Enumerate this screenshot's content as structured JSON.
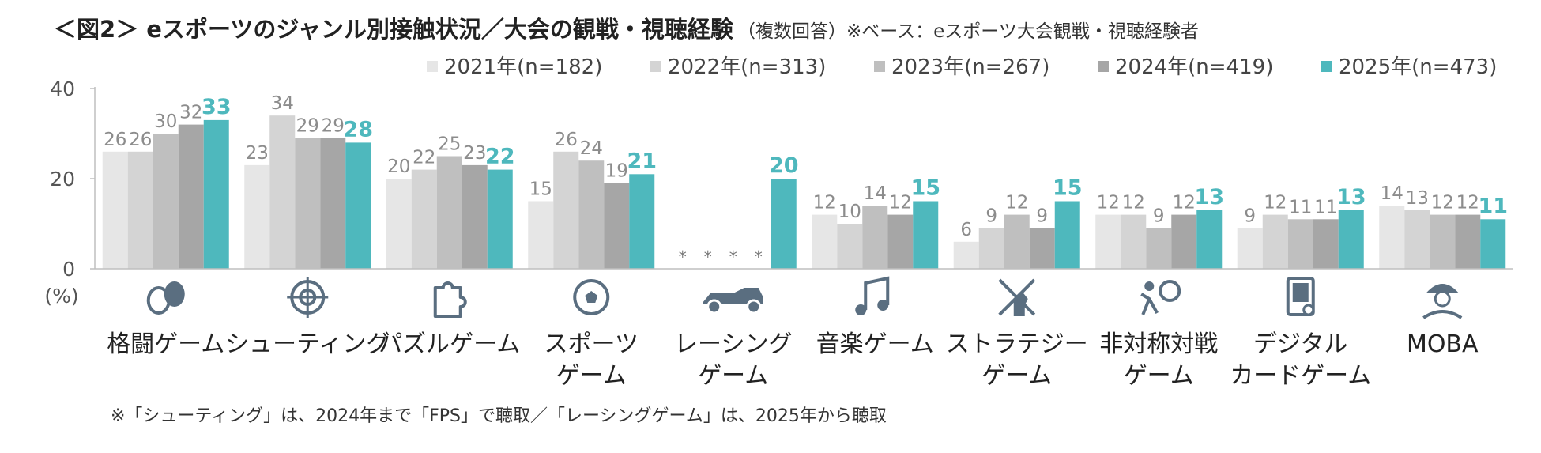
{
  "title": {
    "main": "＜図2＞ eスポーツのジャンル別接触状況／大会の観戦・視聴経験",
    "sub": "（複数回答）※ベース：eスポーツ大会観戦・視聴経験者"
  },
  "footnote": "※「シューティング」は、2024年まで「FPS」で聴取／「レーシングゲーム」は、2025年から聴取",
  "chart_data": {
    "type": "bar",
    "categories": [
      [
        "格闘ゲーム"
      ],
      [
        "シューティング"
      ],
      [
        "パズルゲーム"
      ],
      [
        "スポーツ",
        "ゲーム"
      ],
      [
        "レーシング",
        "ゲーム"
      ],
      [
        "音楽ゲーム"
      ],
      [
        "ストラテジー",
        "ゲーム"
      ],
      [
        "非対称対戦",
        "ゲーム"
      ],
      [
        "デジタル",
        "カードゲーム"
      ],
      [
        "MOBA"
      ]
    ],
    "series": [
      {
        "name": "2021年(n=182)",
        "color": "#e6e6e6",
        "values": [
          26,
          23,
          20,
          15,
          null,
          12,
          6,
          12,
          9,
          14
        ]
      },
      {
        "name": "2022年(n=313)",
        "color": "#d4d4d4",
        "values": [
          26,
          34,
          22,
          26,
          null,
          10,
          9,
          12,
          12,
          13
        ]
      },
      {
        "name": "2023年(n=267)",
        "color": "#bfbfbf",
        "values": [
          30,
          29,
          25,
          24,
          null,
          14,
          12,
          9,
          11,
          12
        ]
      },
      {
        "name": "2024年(n=419)",
        "color": "#a6a6a6",
        "values": [
          32,
          29,
          23,
          19,
          null,
          12,
          9,
          12,
          11,
          12
        ]
      },
      {
        "name": "2025年(n=473)",
        "color": "#4eb8bd",
        "values": [
          33,
          28,
          22,
          21,
          20,
          15,
          15,
          13,
          13,
          11
        ]
      }
    ],
    "missing_marker": "*",
    "ylim": [
      0,
      40
    ],
    "yticks": [
      0,
      20,
      40
    ],
    "unit_label": "(%)",
    "highlight_series": "2025年(n=473)",
    "legend_position": "top-right",
    "grid": false
  },
  "icons": [
    "boxing-gloves-icon",
    "crosshair-icon",
    "puzzle-piece-icon",
    "soccer-ball-icon",
    "race-car-icon",
    "music-note-icon",
    "knight-swords-icon",
    "chase-figure-icon",
    "card-device-icon",
    "soldier-helmet-icon"
  ]
}
